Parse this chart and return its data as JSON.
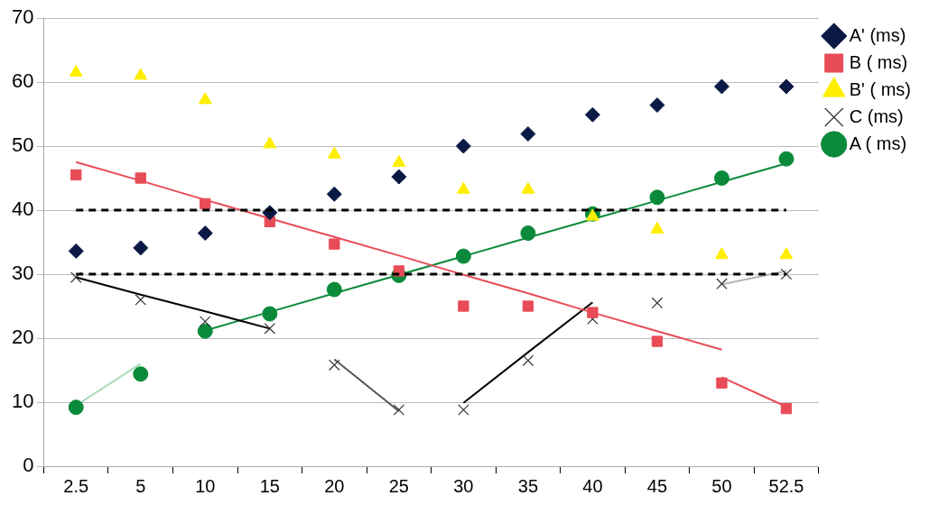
{
  "chart_data": {
    "type": "scatter",
    "categories": [
      "2.5",
      "5",
      "10",
      "15",
      "20",
      "25",
      "30",
      "35",
      "40",
      "45",
      "50",
      "52.5"
    ],
    "ylim": [
      0,
      70
    ],
    "yticks": [
      0,
      10,
      20,
      30,
      40,
      50,
      60,
      70
    ],
    "grid": "y",
    "legend": "top right",
    "ref_lines": [
      {
        "axis": "y",
        "value": 40,
        "color": "#000000",
        "line_style": "dashed"
      },
      {
        "axis": "y",
        "value": 30,
        "color": "#000000",
        "line_style": "dashed"
      }
    ],
    "series": [
      {
        "name": "A' (ms)",
        "color": "#0b1a45",
        "marker": "diamond",
        "values": [
          33.6,
          34.1,
          36.4,
          39.6,
          42.5,
          45.2,
          50.0,
          51.9,
          54.9,
          56.4,
          59.3,
          59.3
        ]
      },
      {
        "name": "B ( ms)",
        "color": "#e84c57",
        "marker": "square",
        "values": [
          45.5,
          45.0,
          41.0,
          38.2,
          34.7,
          30.5,
          25.0,
          25.0,
          24.0,
          19.5,
          13.0,
          9.0
        ]
      },
      {
        "name": "B' ( ms)",
        "color": "#ffee00",
        "marker": "triangle",
        "values": [
          61.5,
          61.0,
          57.2,
          50.3,
          48.7,
          47.4,
          43.2,
          43.2,
          39.0,
          37.0,
          33.0,
          33.0
        ]
      },
      {
        "name": "C (ms)",
        "color": "#333333",
        "marker": "cross",
        "values": [
          29.5,
          26.0,
          22.6,
          21.5,
          15.8,
          8.8,
          8.8,
          16.5,
          23.0,
          25.5,
          28.5,
          30.0
        ]
      },
      {
        "name": "A ( ms)",
        "color": "#0a8a3a",
        "marker": "circle",
        "values": [
          9.2,
          14.4,
          21.1,
          23.8,
          27.6,
          29.8,
          32.8,
          36.4,
          39.4,
          42.0,
          45.0,
          48.0
        ]
      },
      {
        "type": "line",
        "color": "#e84c57",
        "values": [
          47.5,
          44.6,
          41.6,
          38.7,
          35.8,
          32.9,
          29.9,
          27.0,
          24.0,
          21.1,
          18.2,
          null
        ]
      },
      {
        "type": "line",
        "color": "#e84c57",
        "values": [
          null,
          null,
          null,
          null,
          null,
          null,
          null,
          null,
          null,
          null,
          13.9,
          9.3
        ]
      },
      {
        "type": "line",
        "color": "#000000",
        "values": [
          29.5,
          26.8,
          24.2,
          21.5,
          null,
          null,
          null,
          null,
          null,
          null,
          null,
          null
        ]
      },
      {
        "type": "line",
        "color": "#555555",
        "values": [
          null,
          null,
          null,
          null,
          16.7,
          8.6,
          null,
          null,
          null,
          null,
          null,
          null
        ]
      },
      {
        "type": "line",
        "color": "#000000",
        "values": [
          null,
          null,
          null,
          null,
          null,
          null,
          9.9,
          17.8,
          25.6,
          null,
          null,
          null
        ]
      },
      {
        "type": "line",
        "color": "#b0b0b0",
        "values": [
          null,
          null,
          null,
          null,
          null,
          null,
          null,
          null,
          null,
          null,
          28.4,
          30.5
        ]
      },
      {
        "type": "line",
        "color": "#a8dcb8",
        "values": [
          9.5,
          16.0,
          null,
          null,
          null,
          null,
          null,
          null,
          null,
          null,
          null,
          null
        ]
      },
      {
        "type": "line",
        "color": "#0a8a3a",
        "values": [
          null,
          null,
          21.2,
          24.1,
          27.0,
          29.9,
          32.8,
          35.7,
          38.6,
          41.5,
          44.4,
          47.3
        ]
      }
    ]
  }
}
